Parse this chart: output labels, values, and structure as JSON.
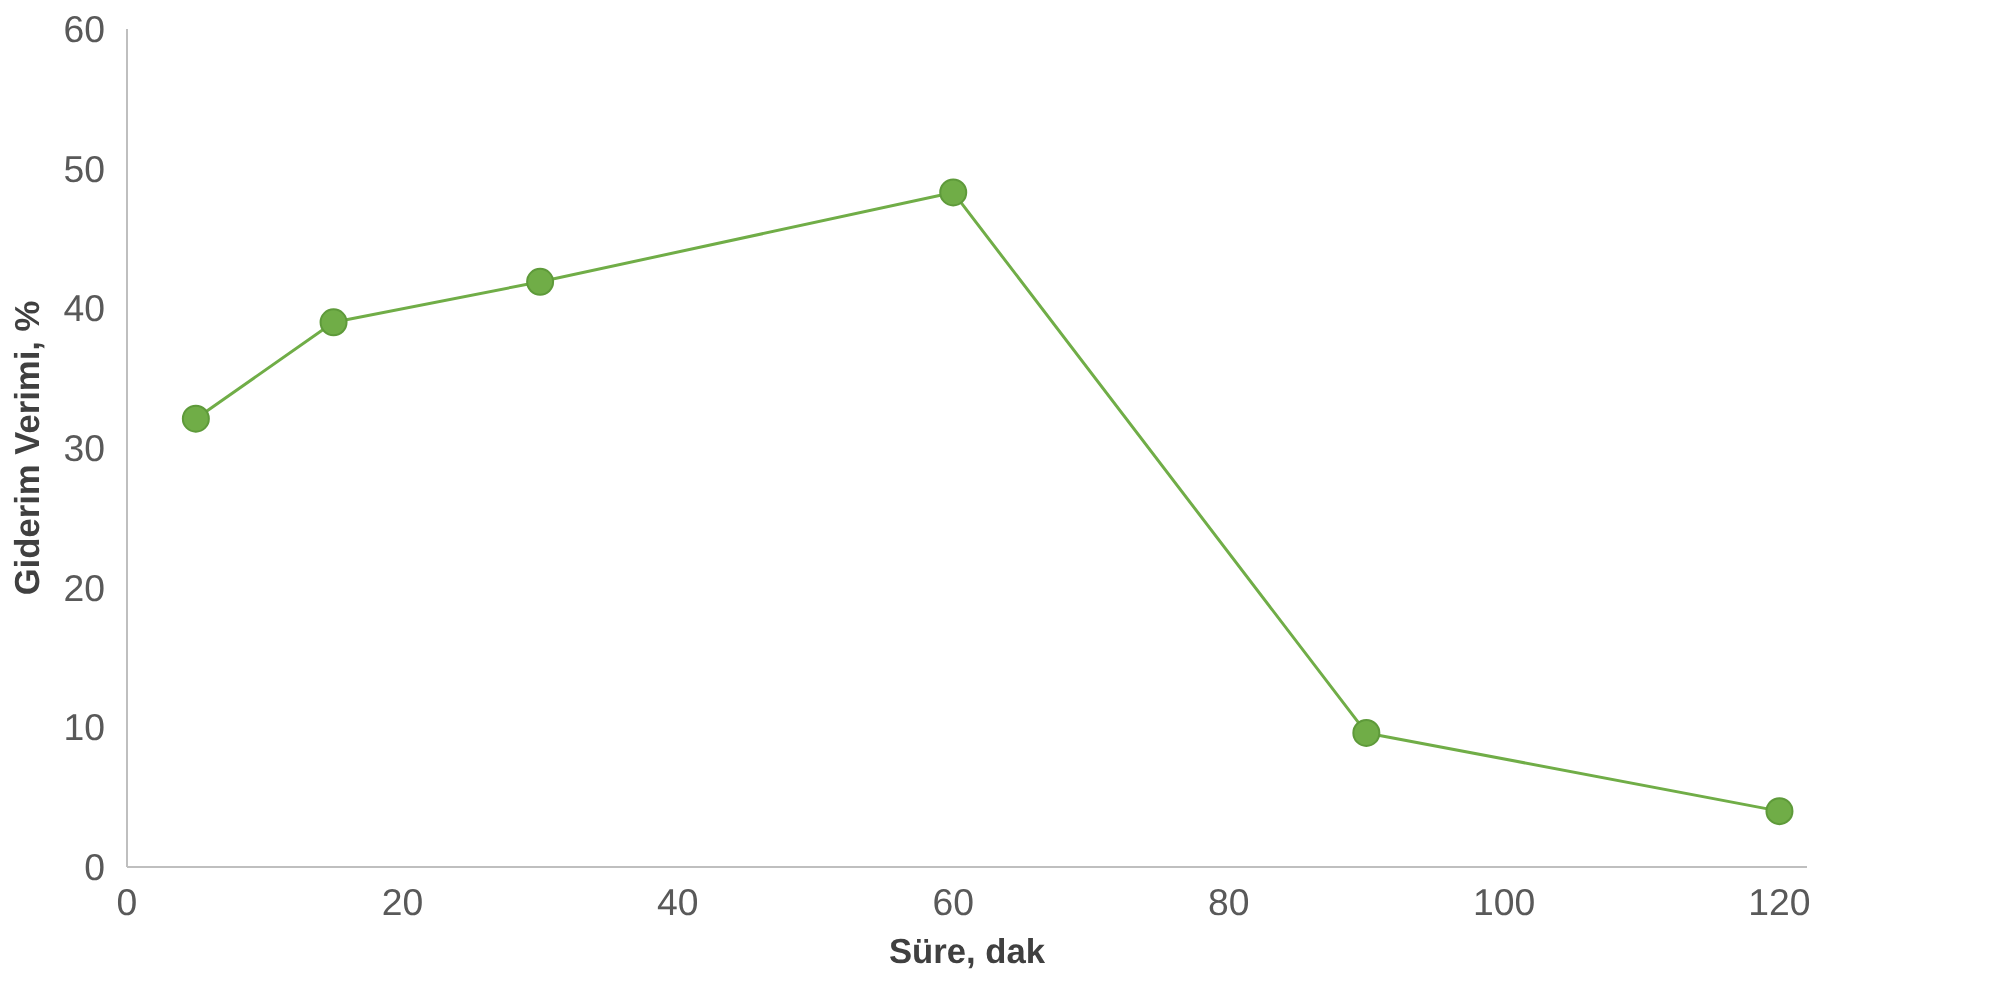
{
  "chart_data": {
    "type": "line",
    "xlabel": "Süre, dak",
    "ylabel": "Giderim Verimi, %",
    "x": [
      5,
      15,
      30,
      60,
      90,
      120
    ],
    "series": [
      {
        "color": "#70ad47",
        "values": [
          32.1,
          39.0,
          41.9,
          48.3,
          9.6,
          4.0
        ]
      }
    ],
    "xlim": [
      0,
      122
    ],
    "ylim": [
      0,
      60
    ],
    "xticks": [
      0,
      20,
      40,
      60,
      80,
      100,
      120
    ],
    "yticks": [
      0,
      10,
      20,
      30,
      40,
      50,
      60
    ],
    "grid": false,
    "marker": "circle",
    "line_style": "solid"
  }
}
